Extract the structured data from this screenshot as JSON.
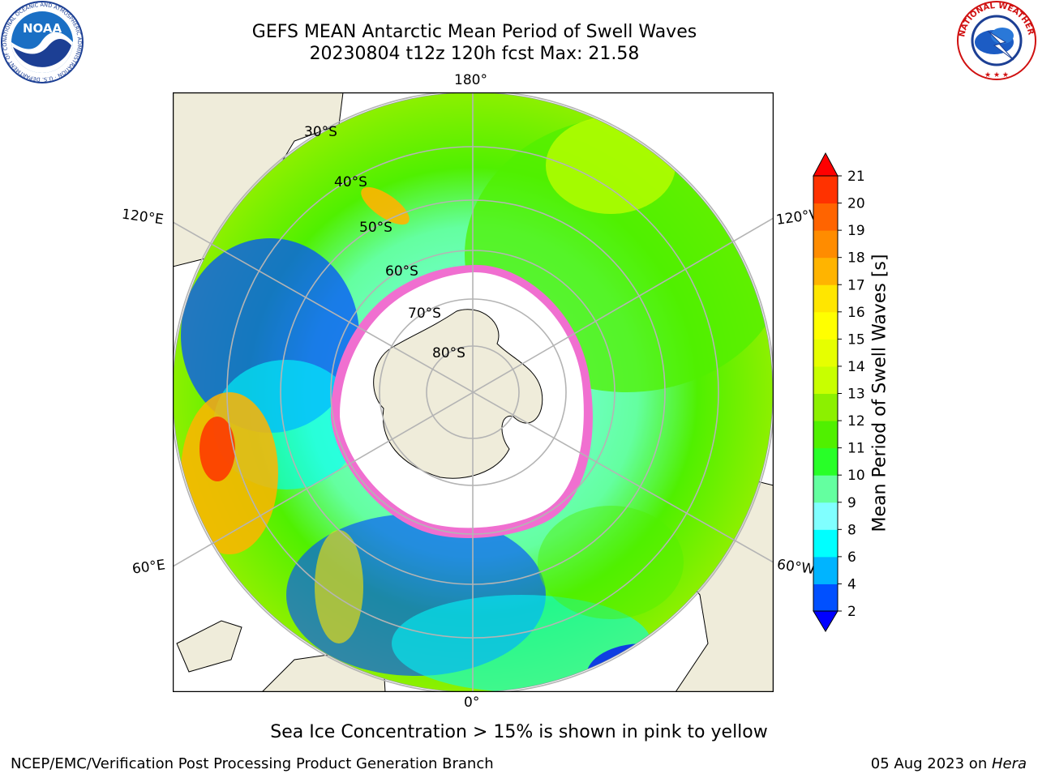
{
  "header": {
    "title_line1": "GEFS MEAN Antarctic Mean Period of Swell Waves",
    "title_line2": "20230804 t12z 120h fcst   Max: 21.58"
  },
  "map": {
    "projection": "south-polar-stereographic",
    "lon_labels": {
      "top": "180°",
      "bottom": "0°",
      "upper_left": "120°E",
      "lower_left": "60°E",
      "upper_right": "120°W",
      "lower_right": "60°W"
    },
    "lat_labels": [
      "30°S",
      "40°S",
      "50°S",
      "60°S",
      "70°S",
      "80°S"
    ],
    "colors": {
      "land": "#efecda",
      "ice_edge_pink": "#f06fd0",
      "grid": "#b4b4b4"
    }
  },
  "colorbar": {
    "label": "Mean Period of Swell Waves [s]",
    "ticks": [
      "2",
      "4",
      "6",
      "8",
      "9",
      "10",
      "11",
      "12",
      "13",
      "14",
      "15",
      "16",
      "17",
      "18",
      "19",
      "20",
      "21"
    ],
    "colors": [
      "#0050ff",
      "#00b4ff",
      "#00ffff",
      "#80ffff",
      "#64ffa0",
      "#28ff28",
      "#50f000",
      "#8cf000",
      "#c8ff00",
      "#e6ff00",
      "#ffff00",
      "#ffe600",
      "#ffb400",
      "#ff8c00",
      "#ff6400",
      "#ff3200"
    ],
    "min_arrow_color": "#0000ff",
    "max_arrow_color": "#ff0000"
  },
  "caption": "Sea Ice Concentration > 15% is shown in pink to yellow",
  "footer": {
    "left": "NCEP/EMC/Verification Post Processing Product Generation Branch",
    "right_date": "05 Aug 2023 on ",
    "right_host": "Hera"
  },
  "logos": {
    "noaa_text": "NOAA",
    "noaa_ring_text": "NATIONAL OCEANIC AND ATMOSPHERIC ADMINISTRATION · U.S. DEPARTMENT OF COMMERCE",
    "nws_ring_text": "NATIONAL WEATHER SERVICE"
  }
}
